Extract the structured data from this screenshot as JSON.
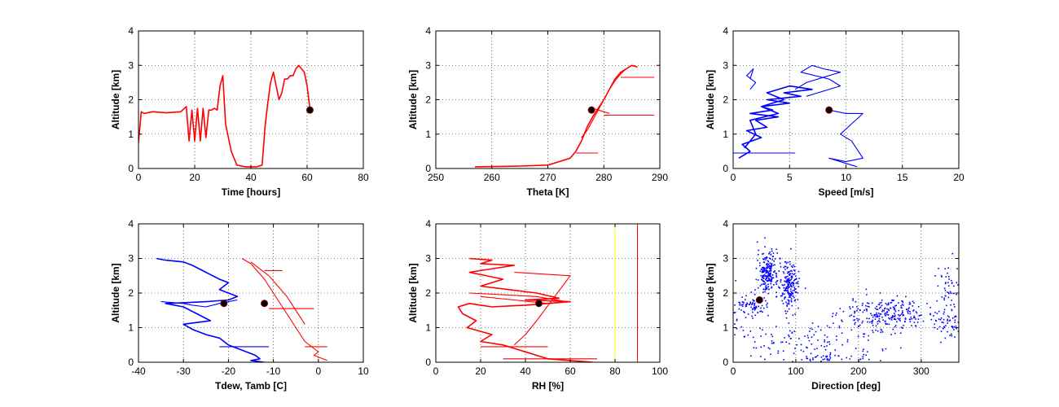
{
  "colors": {
    "red": "#ff0000",
    "blue": "#0000ff",
    "yellow": "#ffff00",
    "marker": "#000000"
  },
  "chart_data": [
    {
      "type": "line",
      "xlabel": "Time [hours]",
      "ylabel": "Altitude [km]",
      "xlim": [
        0,
        80
      ],
      "ylim": [
        0,
        4
      ],
      "xticks": [
        "0",
        "20",
        "40",
        "60",
        "80"
      ],
      "yticks": [
        "0",
        "1",
        "2",
        "3",
        "4"
      ],
      "grid": true,
      "series": [
        {
          "color": "#ff0000",
          "x": [
            0,
            1,
            2,
            5,
            10,
            15,
            17,
            18,
            19,
            20,
            21,
            22,
            23,
            24,
            25,
            26,
            27,
            28,
            29,
            30,
            31,
            33,
            35,
            38,
            42,
            44,
            45,
            46,
            47,
            48,
            50,
            51,
            52,
            53,
            54,
            55,
            56,
            57,
            58,
            59,
            60,
            61
          ],
          "y": [
            0.75,
            1.65,
            1.6,
            1.65,
            1.62,
            1.65,
            1.8,
            0.8,
            1.7,
            0.8,
            1.75,
            0.8,
            1.75,
            0.9,
            1.7,
            1.7,
            1.75,
            1.7,
            2.4,
            2.7,
            1.3,
            0.5,
            0.1,
            0.05,
            0.05,
            0.1,
            1.2,
            1.9,
            2.5,
            2.8,
            2.0,
            2.2,
            2.6,
            2.6,
            2.7,
            2.7,
            2.9,
            3.0,
            2.9,
            2.8,
            2.4,
            1.75
          ]
        }
      ],
      "marker": {
        "x": 61,
        "y": 1.7
      }
    },
    {
      "type": "line",
      "xlabel": "Theta [K]",
      "ylabel": "Altitude [km]",
      "xlim": [
        250,
        290
      ],
      "ylim": [
        0,
        4
      ],
      "xticks": [
        "250",
        "260",
        "270",
        "280",
        "290"
      ],
      "yticks": [
        "0",
        "1",
        "2",
        "3",
        "4"
      ],
      "grid": true,
      "series": [
        {
          "color": "#ff0000",
          "x": [
            257,
            265,
            270,
            272,
            274,
            275,
            276,
            276.5,
            277,
            278,
            279,
            280,
            281,
            282,
            283,
            284,
            285,
            286
          ],
          "y": [
            0.05,
            0.07,
            0.1,
            0.2,
            0.3,
            0.5,
            0.8,
            1.0,
            1.2,
            1.5,
            1.75,
            2.0,
            2.3,
            2.6,
            2.8,
            2.9,
            3.0,
            2.95
          ]
        },
        {
          "color": "#ff0000",
          "x": [
            276,
            277,
            278,
            279,
            280,
            281,
            282,
            283,
            284,
            285
          ],
          "y": [
            0.9,
            1.1,
            1.4,
            1.7,
            2.0,
            2.3,
            2.55,
            2.75,
            2.9,
            3.0
          ]
        },
        {
          "color": "#ff0000",
          "x": [
            278,
            279,
            280,
            281
          ],
          "y": [
            1.75,
            1.7,
            1.65,
            1.6
          ]
        },
        {
          "color": "#ff0000",
          "x": [
            280,
            289
          ],
          "y": [
            1.55,
            1.55
          ]
        },
        {
          "color": "#ff0000",
          "x": [
            283,
            289
          ],
          "y": [
            2.65,
            2.65
          ]
        },
        {
          "color": "#ff0000",
          "x": [
            275,
            279
          ],
          "y": [
            0.45,
            0.45
          ]
        }
      ],
      "marker": {
        "x": 277.8,
        "y": 1.7
      }
    },
    {
      "type": "line",
      "xlabel": "Speed [m/s]",
      "ylabel": "Altitude [km]",
      "xlim": [
        0,
        20
      ],
      "ylim": [
        0,
        4
      ],
      "xticks": [
        "0",
        "5",
        "10",
        "15",
        "20"
      ],
      "yticks": [
        "0",
        "1",
        "2",
        "3",
        "4"
      ],
      "grid": true,
      "series": [
        {
          "color": "#0000ff",
          "x": [
            0.5,
            1.5,
            0.8,
            2.5,
            1.2,
            3.0,
            2.0,
            4.0,
            1.5,
            3.5,
            2.5,
            5.0,
            3.0,
            6.0,
            4.5,
            7.0,
            5.0,
            3.0,
            4.5,
            2.5,
            4.0,
            1.5,
            2.0,
            1.0
          ],
          "y": [
            0.3,
            0.5,
            0.7,
            0.9,
            1.1,
            1.2,
            1.4,
            1.5,
            1.6,
            1.7,
            1.8,
            1.9,
            2.0,
            2.1,
            2.2,
            2.3,
            2.4,
            2.2,
            2.0,
            1.8,
            1.6,
            1.4,
            1.0,
            0.6
          ]
        },
        {
          "color": "#0000ff",
          "x": [
            5.5,
            6.5,
            7.5,
            8.5,
            9.5,
            8.0,
            7.0,
            6.0,
            8.5,
            9.5,
            7.5,
            6.5
          ],
          "y": [
            2.3,
            2.5,
            2.6,
            2.7,
            2.8,
            2.9,
            3.0,
            2.8,
            2.6,
            2.4,
            2.2,
            2.1
          ]
        },
        {
          "color": "#0000ff",
          "x": [
            1.5,
            2.0,
            1.2,
            1.8,
            1.5
          ],
          "y": [
            2.3,
            2.5,
            2.7,
            2.9,
            2.6
          ]
        },
        {
          "color": "#0000ff",
          "x": [
            8.5,
            10,
            11.5,
            10.5,
            9.5,
            10.5,
            11.5,
            10.0,
            8.5,
            10.5,
            11.0
          ],
          "y": [
            1.7,
            1.6,
            1.6,
            1.3,
            1.0,
            0.8,
            0.3,
            0.2,
            0.3,
            0.1,
            0.05
          ]
        },
        {
          "color": "#0000ff",
          "x": [
            0,
            5.5
          ],
          "y": [
            0.45,
            0.45
          ]
        }
      ],
      "marker": {
        "x": 8.5,
        "y": 1.7
      }
    },
    {
      "type": "line",
      "xlabel": "Tdew, Tamb [C]",
      "ylabel": "Altitude [km]",
      "xlim": [
        -40,
        10
      ],
      "ylim": [
        0,
        4
      ],
      "xticks": [
        "-40",
        "-30",
        "-20",
        "-10",
        "0",
        "10"
      ],
      "yticks": [
        "0",
        "1",
        "2",
        "3",
        "4"
      ],
      "grid": true,
      "series": [
        {
          "color": "#0000ff",
          "x": [
            -36,
            -34,
            -30,
            -28,
            -25,
            -22,
            -20,
            -22,
            -18,
            -20,
            -25,
            -30,
            -34,
            -30,
            -27,
            -24,
            -30,
            -28,
            -25,
            -22,
            -20,
            -18,
            -16,
            -14,
            -13,
            -15,
            -12
          ],
          "y": [
            3.0,
            2.95,
            2.9,
            2.8,
            2.6,
            2.4,
            2.3,
            2.1,
            1.9,
            1.8,
            1.75,
            1.72,
            1.7,
            1.6,
            1.4,
            1.2,
            1.1,
            0.95,
            0.8,
            0.7,
            0.5,
            0.4,
            0.3,
            0.2,
            0.1,
            0.05,
            0.0
          ]
        },
        {
          "color": "#0000ff",
          "x": [
            -35,
            -30,
            -28,
            -25,
            -22,
            -20,
            -18
          ],
          "y": [
            1.75,
            1.7,
            1.65,
            1.6,
            1.7,
            1.75,
            1.8
          ]
        },
        {
          "color": "#0000ff",
          "x": [
            -22,
            -11
          ],
          "y": [
            0.45,
            0.45
          ]
        },
        {
          "color": "#ff0000",
          "x": [
            -17,
            -15,
            -14,
            -13,
            -12,
            -11,
            -10,
            -9,
            -8,
            -7,
            -6,
            -5,
            -4,
            -3,
            -2,
            -1,
            0,
            -1,
            1,
            2
          ],
          "y": [
            3.0,
            2.85,
            2.7,
            2.55,
            2.4,
            2.2,
            2.0,
            1.8,
            1.6,
            1.4,
            1.2,
            1.0,
            0.8,
            0.6,
            0.5,
            0.4,
            0.3,
            0.2,
            0.1,
            0.05
          ]
        },
        {
          "color": "#ff0000",
          "x": [
            -15,
            -13,
            -11,
            -9,
            -7,
            -5,
            -3
          ],
          "y": [
            2.9,
            2.7,
            2.5,
            2.2,
            1.9,
            1.5,
            1.1
          ]
        },
        {
          "color": "#ff0000",
          "x": [
            -12,
            -8
          ],
          "y": [
            2.65,
            2.65
          ]
        },
        {
          "color": "#ff0000",
          "x": [
            -11,
            -1
          ],
          "y": [
            1.55,
            1.55
          ]
        },
        {
          "color": "#ff0000",
          "x": [
            -3,
            2
          ],
          "y": [
            0.45,
            0.45
          ]
        }
      ],
      "markers": [
        {
          "x": -21,
          "y": 1.7
        },
        {
          "x": -12,
          "y": 1.7
        }
      ]
    },
    {
      "type": "line",
      "xlabel": "RH [%]",
      "ylabel": "Altitude [km]",
      "xlim": [
        0,
        100
      ],
      "ylim": [
        0,
        4
      ],
      "xticks": [
        "0",
        "20",
        "40",
        "60",
        "80",
        "100"
      ],
      "yticks": [
        "0",
        "1",
        "2",
        "3",
        "4"
      ],
      "grid": true,
      "series": [
        {
          "color": "#ff0000",
          "x": [
            15,
            25,
            20,
            35,
            15,
            30,
            20,
            45,
            55,
            40,
            60,
            50,
            40,
            25,
            15,
            10,
            12,
            18,
            14,
            25,
            20,
            30,
            35,
            40,
            45,
            50,
            60,
            70
          ],
          "y": [
            3.0,
            2.95,
            2.85,
            2.8,
            2.6,
            2.4,
            2.2,
            2.0,
            1.85,
            1.8,
            1.75,
            1.7,
            1.65,
            1.6,
            1.7,
            1.6,
            1.4,
            1.2,
            1.0,
            0.8,
            0.6,
            0.5,
            0.4,
            0.3,
            0.2,
            0.1,
            0.05,
            0.0
          ]
        },
        {
          "color": "#ff0000",
          "x": [
            15,
            30,
            45,
            58,
            50,
            35,
            20
          ],
          "y": [
            2.0,
            1.95,
            1.9,
            1.75,
            1.7,
            1.8,
            1.9
          ]
        },
        {
          "color": "#ff0000",
          "x": [
            35,
            60,
            45,
            40,
            35
          ],
          "y": [
            2.6,
            2.5,
            1.2,
            0.8,
            0.5
          ]
        },
        {
          "color": "#ff0000",
          "x": [
            30,
            72
          ],
          "y": [
            0.1,
            0.1
          ]
        },
        {
          "color": "#ff0000",
          "x": [
            20,
            50
          ],
          "y": [
            0.45,
            0.45
          ]
        }
      ],
      "vlines": [
        {
          "x": 80,
          "color": "#ffff00"
        },
        {
          "x": 90,
          "color": "#ff0000"
        }
      ],
      "marker": {
        "x": 46,
        "y": 1.7
      }
    },
    {
      "type": "scatter",
      "xlabel": "Direction [deg]",
      "ylabel": "Altitude [km]",
      "xlim": [
        0,
        360
      ],
      "ylim": [
        0,
        4
      ],
      "xticks": [
        "0",
        "100",
        "200",
        "300"
      ],
      "yticks": [
        "0",
        "1",
        "2",
        "3",
        "4"
      ],
      "grid": true,
      "clusters": [
        {
          "color": "#0000ff",
          "cx": 55,
          "cy": 2.6,
          "sx": 8,
          "sy": 0.3,
          "n": 220
        },
        {
          "color": "#0000ff",
          "cx": 90,
          "cy": 2.2,
          "sx": 8,
          "sy": 0.35,
          "n": 200
        },
        {
          "color": "#0000ff",
          "cx": 30,
          "cy": 1.65,
          "sx": 12,
          "sy": 0.1,
          "n": 50
        },
        {
          "color": "#0000ff",
          "cx": 245,
          "cy": 1.4,
          "sx": 35,
          "sy": 0.25,
          "n": 260
        },
        {
          "color": "#0000ff",
          "cx": 345,
          "cy": 1.1,
          "sx": 12,
          "sy": 0.2,
          "n": 60
        },
        {
          "color": "#0000ff",
          "cx": 345,
          "cy": 2.1,
          "sx": 10,
          "sy": 0.4,
          "n": 50
        },
        {
          "color": "#0000ff",
          "cx": 120,
          "cy": 0.6,
          "sx": 70,
          "sy": 0.3,
          "n": 120
        },
        {
          "color": "#0000ff",
          "cx": 150,
          "cy": 0.1,
          "sx": 40,
          "sy": 0.05,
          "n": 40
        },
        {
          "color": "#0000ff",
          "cx": 20,
          "cy": 1.4,
          "sx": 15,
          "sy": 0.4,
          "n": 40
        }
      ],
      "marker": {
        "x": 42,
        "y": 1.8
      }
    }
  ]
}
